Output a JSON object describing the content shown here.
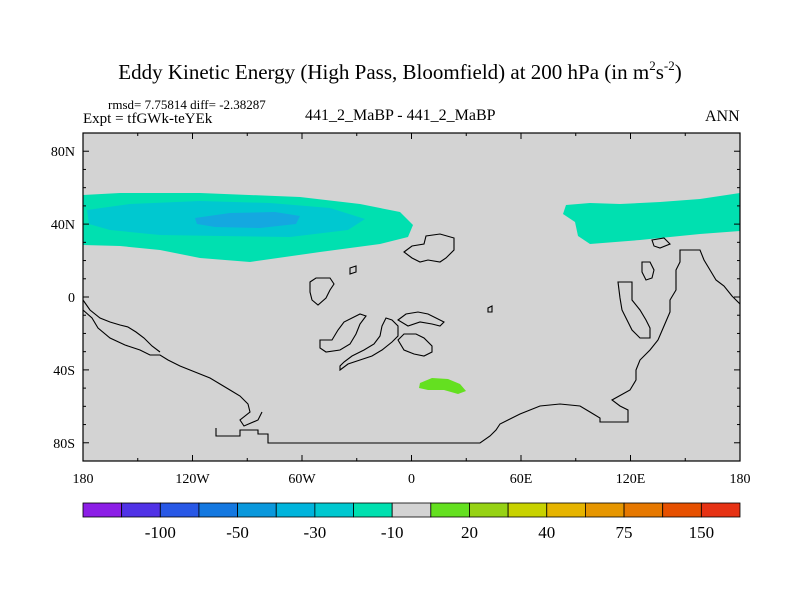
{
  "header": {
    "title_main": "Eddy Kinetic Energy (High Pass, Bloomfield) at 200 hPa (in m",
    "title_sup1": "2",
    "title_mid": "s",
    "title_sup2": "-2",
    "title_end": ")",
    "stats": "rmsd= 7.75814 diff= -2.38287",
    "expt": "Expt = tfGWk-teYEk",
    "experiment_diff": "441_2_MaBP - 441_2_MaBP",
    "season": "ANN"
  },
  "chart_data": {
    "type": "contour-map",
    "title": "Eddy Kinetic Energy (High Pass, Bloomfield) at 200 hPa (in m2s-2)",
    "x_range": [
      -180,
      180
    ],
    "y_range": [
      -90,
      90
    ],
    "x_ticks": [
      {
        "value": -180,
        "label": "180"
      },
      {
        "value": -120,
        "label": "120W"
      },
      {
        "value": -60,
        "label": "60W"
      },
      {
        "value": 0,
        "label": "0"
      },
      {
        "value": 60,
        "label": "60E"
      },
      {
        "value": 120,
        "label": "120E"
      },
      {
        "value": 180,
        "label": "180"
      }
    ],
    "y_ticks": [
      {
        "value": 80,
        "label": "80N"
      },
      {
        "value": 40,
        "label": "40N"
      },
      {
        "value": 0,
        "label": "0"
      },
      {
        "value": -40,
        "label": "40S"
      },
      {
        "value": -80,
        "label": "80S"
      }
    ],
    "colors": {
      "background": "#d3d3d3",
      "neg10": "#00e0b0",
      "neg30": "#00c8d0",
      "neg50": "#14a8e0",
      "pos10": "#64e020",
      "outline": "#000000"
    },
    "regions": [
      {
        "name": "northern-atlantic-pacific-negative-band",
        "level": "-10",
        "lon_range": [
          -180,
          -2
        ],
        "lat_range": [
          19,
          56
        ]
      },
      {
        "name": "north-pacific-negative-core",
        "level": "-30",
        "lon_range": [
          -178,
          -25
        ],
        "lat_range": [
          29,
          51
        ]
      },
      {
        "name": "north-pacific-negative-center",
        "level": "-50",
        "lon_range": [
          -120,
          -60
        ],
        "lat_range": [
          39,
          46
        ]
      },
      {
        "name": "east-asia-negative-band",
        "level": "-10",
        "lon_range": [
          83,
          180
        ],
        "lat_range": [
          27,
          57
        ]
      },
      {
        "name": "southern-ocean-positive-patch",
        "level": "20",
        "lon_range": [
          3,
          29
        ],
        "lat_range": [
          -53,
          -46
        ]
      }
    ],
    "colorbar": {
      "levels": [
        "-100",
        "-50",
        "-30",
        "-10",
        "20",
        "40",
        "75",
        "150"
      ],
      "colors": [
        "#8c1ee6",
        "#5032e6",
        "#2858e6",
        "#1478e0",
        "#0a98dc",
        "#00b4dc",
        "#00c8d0",
        "#00e0b0",
        "#d3d3d3",
        "#64e020",
        "#96d214",
        "#c8d200",
        "#e6b400",
        "#e69600",
        "#e67800",
        "#e65000",
        "#e63214"
      ]
    }
  }
}
